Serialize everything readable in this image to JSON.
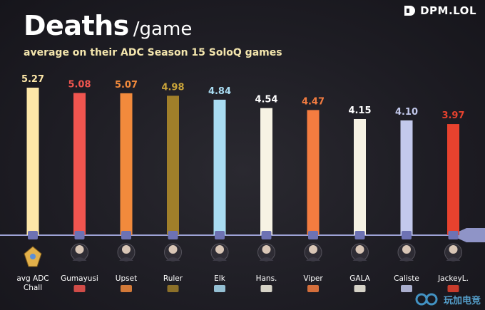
{
  "title": "Deaths",
  "title_unit": "/game",
  "subtitle": "average on their ADC Season 15 SoloQ games",
  "brand": "DPM.LOL",
  "watermark": "玩加电竞",
  "chart_data": {
    "type": "bar",
    "title": "Deaths /game",
    "subtitle": "average on their ADC Season 15 SoloQ games",
    "categories": [
      "avg ADC Chall",
      "Gumayusi",
      "Upset",
      "Ruler",
      "Elk",
      "Hans.",
      "Viper",
      "GALA",
      "Caliste",
      "JackeyL."
    ],
    "values": [
      5.27,
      5.08,
      5.07,
      4.98,
      4.84,
      4.54,
      4.47,
      4.15,
      4.1,
      3.97
    ],
    "value_labels": [
      "5.27",
      "5.08",
      "5.07",
      "4.98",
      "4.84",
      "4.54",
      "4.47",
      "4.15",
      "4.10",
      "3.97"
    ],
    "colors": [
      "#fde7a8",
      "#f0554f",
      "#f28a3c",
      "#a07f2a",
      "#a9dcf2",
      "#f7f3e4",
      "#f47c40",
      "#f6f2e4",
      "#c3c9ec",
      "#e8422e"
    ],
    "label_colors": [
      "#fde7a8",
      "#f0554f",
      "#f28a3c",
      "#c9a43a",
      "#a9dcf2",
      "#ffffff",
      "#f47c40",
      "#ffffff",
      "#c3c9ec",
      "#e8422e"
    ],
    "team_icons": [
      "challenger-emblem-icon",
      "t1-logo-icon",
      "fnatic-logo-icon",
      "gen-g-logo-icon",
      "blg-logo-icon",
      "g2-logo-icon",
      "hle-logo-icon",
      "ig-logo-icon",
      "kc-logo-icon",
      "tes-logo-icon"
    ],
    "ylim": [
      0,
      5.5
    ],
    "grid": false,
    "legend": "none"
  }
}
